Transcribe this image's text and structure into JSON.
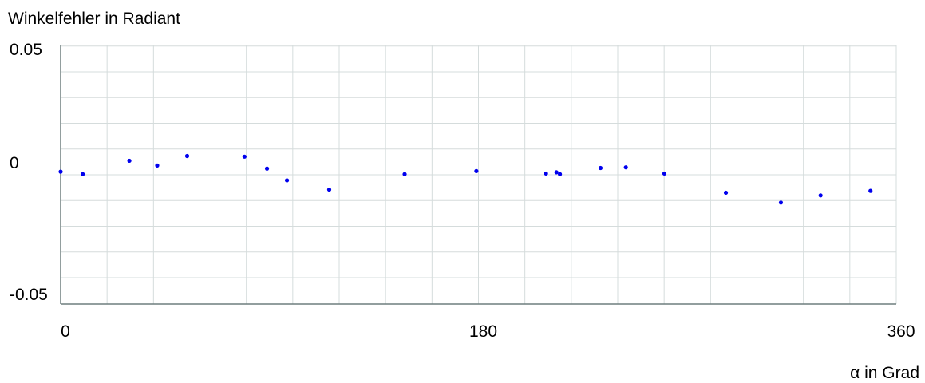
{
  "chart_data": {
    "type": "scatter",
    "title": "",
    "ylabel": "Winkelfehler in Radiant",
    "xlabel": "α in Grad",
    "xlim": [
      0,
      360
    ],
    "ylim": [
      -0.05,
      0.05
    ],
    "x_ticks": [
      {
        "value": 0,
        "label": "0"
      },
      {
        "value": 180,
        "label": "180"
      },
      {
        "value": 360,
        "label": "360"
      }
    ],
    "y_ticks": [
      {
        "value": 0.05,
        "label": "0.05"
      },
      {
        "value": 0,
        "label": "0"
      },
      {
        "value": -0.05,
        "label": "-0.05"
      }
    ],
    "grid": true,
    "legend": "none",
    "colors": {
      "points": "#0000ee",
      "grid": "#d5dcdc",
      "axis": "#6e7e7e"
    },
    "series": [
      {
        "points": [
          {
            "x": 0.0,
            "y": 0.0015
          },
          {
            "x": 9.5,
            "y": 0.0003
          },
          {
            "x": 29.6,
            "y": 0.0068
          },
          {
            "x": 41.6,
            "y": 0.0045
          },
          {
            "x": 54.5,
            "y": 0.0091
          },
          {
            "x": 79.2,
            "y": 0.0088
          },
          {
            "x": 88.9,
            "y": 0.003
          },
          {
            "x": 97.5,
            "y": -0.0027
          },
          {
            "x": 115.7,
            "y": -0.0072
          },
          {
            "x": 148.2,
            "y": 0.0003
          },
          {
            "x": 179.1,
            "y": 0.0018
          },
          {
            "x": 209.1,
            "y": 0.0006
          },
          {
            "x": 213.6,
            "y": 0.0012
          },
          {
            "x": 215.1,
            "y": 0.0003
          },
          {
            "x": 232.6,
            "y": 0.0033
          },
          {
            "x": 243.5,
            "y": 0.0036
          },
          {
            "x": 260.1,
            "y": 0.0006
          },
          {
            "x": 286.6,
            "y": -0.0087
          },
          {
            "x": 310.3,
            "y": -0.0135
          },
          {
            "x": 327.4,
            "y": -0.01
          },
          {
            "x": 348.9,
            "y": -0.0078
          }
        ]
      }
    ]
  }
}
